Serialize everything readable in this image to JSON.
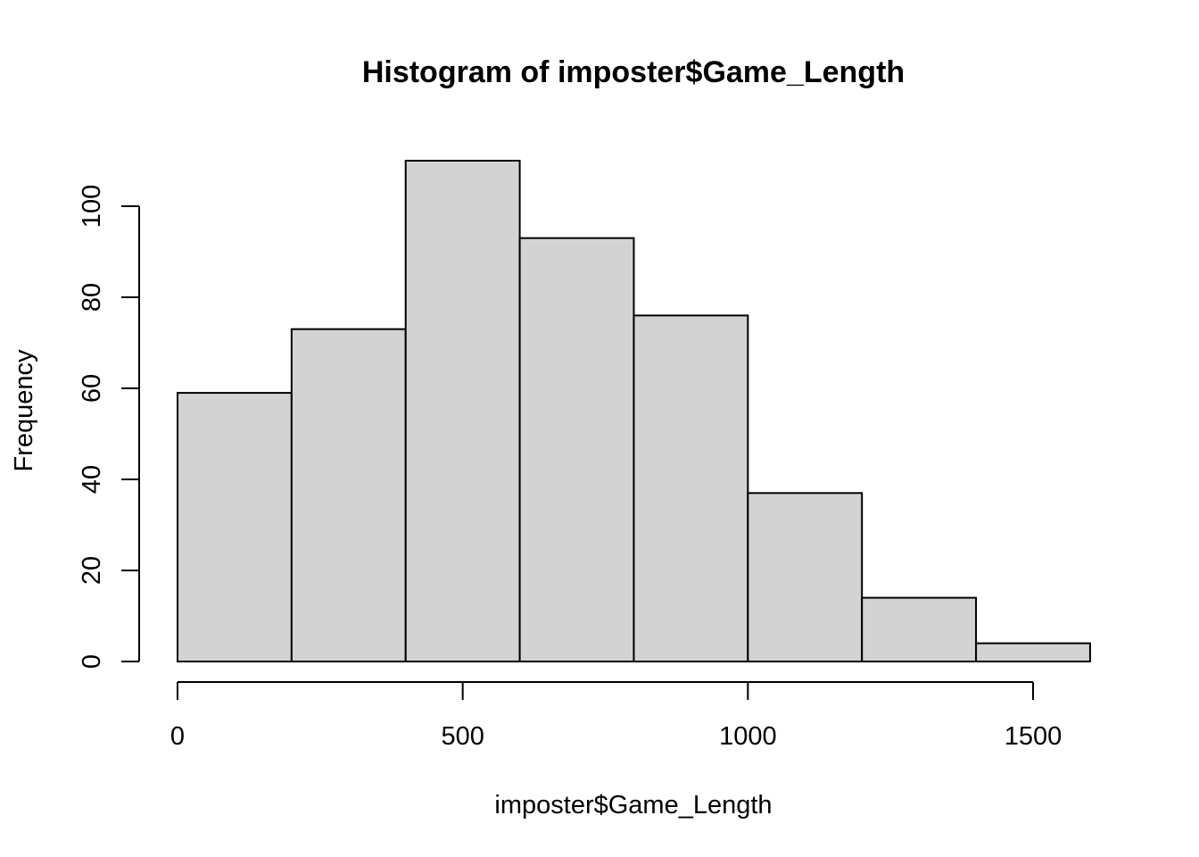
{
  "chart_data": {
    "type": "bar",
    "title": "Histogram of imposter$Game_Length",
    "xlabel": "imposter$Game_Length",
    "ylabel": "Frequency",
    "bins": [
      {
        "start": 0,
        "end": 200,
        "count": 59
      },
      {
        "start": 200,
        "end": 400,
        "count": 73
      },
      {
        "start": 400,
        "end": 600,
        "count": 110
      },
      {
        "start": 600,
        "end": 800,
        "count": 93
      },
      {
        "start": 800,
        "end": 1000,
        "count": 76
      },
      {
        "start": 1000,
        "end": 1200,
        "count": 37
      },
      {
        "start": 1200,
        "end": 1400,
        "count": 14
      },
      {
        "start": 1400,
        "end": 1600,
        "count": 4
      }
    ],
    "x_ticks": [
      0,
      500,
      1000,
      1500
    ],
    "y_ticks": [
      0,
      20,
      40,
      60,
      80,
      100
    ],
    "xlim": [
      0,
      1600
    ],
    "ylim": [
      0,
      110
    ],
    "bar_fill": "#d3d3d3",
    "bar_stroke": "#000000",
    "grid": false,
    "legend": "none"
  }
}
